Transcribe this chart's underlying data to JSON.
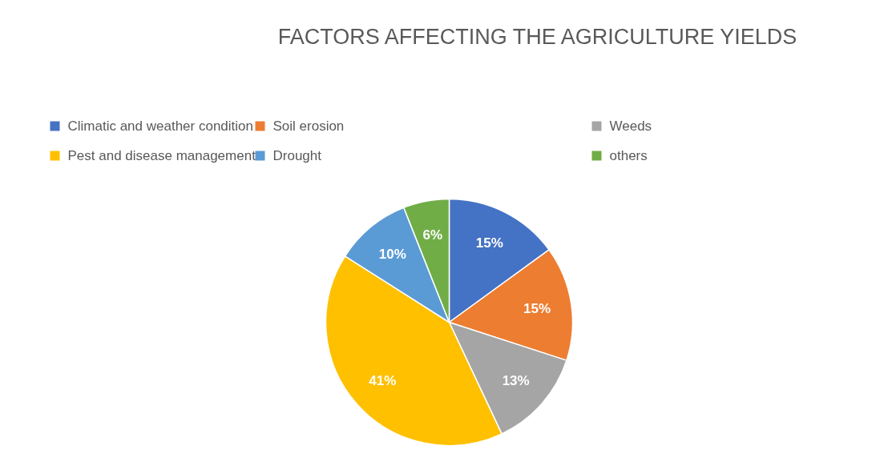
{
  "chart_data": {
    "type": "pie",
    "title": "FACTORS AFFECTING THE AGRICULTURE YIELDS",
    "categories": [
      "Climatic and weather condition",
      "Soil erosion",
      "Weeds",
      "Pest and disease management",
      "Drought",
      "others"
    ],
    "values": [
      15,
      15,
      13,
      41,
      10,
      6
    ],
    "value_labels": [
      "15%",
      "15%",
      "13%",
      "41%",
      "10%",
      "6%"
    ],
    "colors": [
      "#4472c4",
      "#ed7d31",
      "#a5a5a5",
      "#ffc000",
      "#5b9bd5",
      "#70ad47"
    ],
    "legend": "top"
  }
}
